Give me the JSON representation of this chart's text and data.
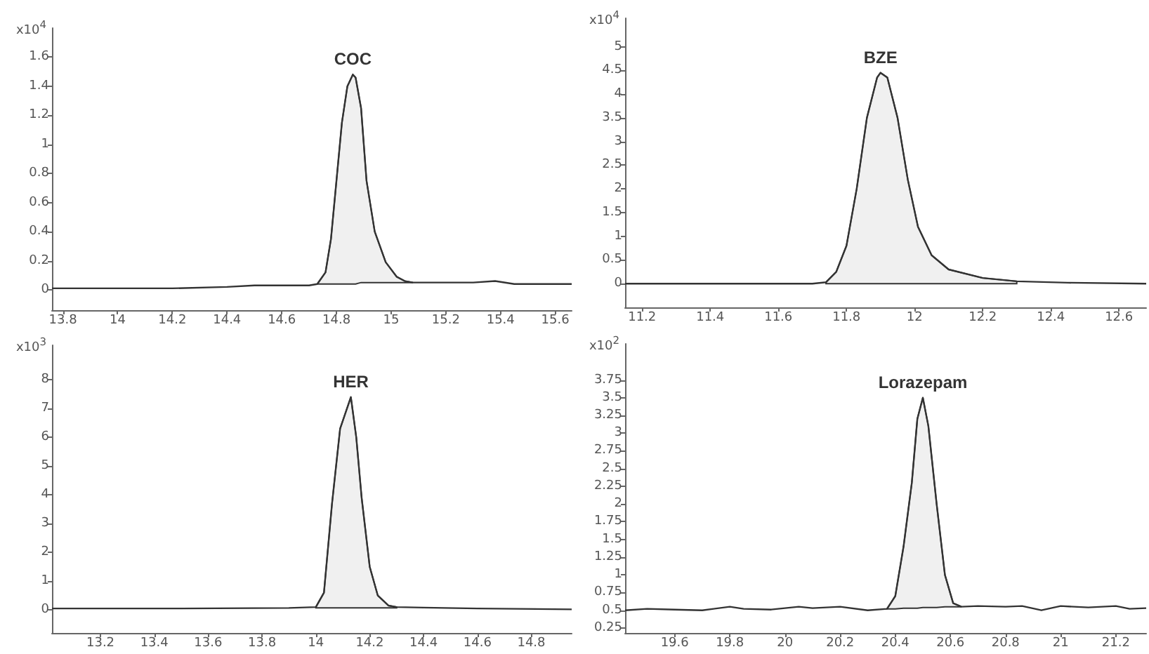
{
  "chart_data": [
    {
      "type": "line",
      "ylabel": "x10$^{4}$",
      "xlim": [
        13.76,
        15.66
      ],
      "ylim": [
        -0.14,
        1.8
      ],
      "xticks": [
        13.8,
        14,
        14.2,
        14.4,
        14.6,
        14.8,
        15,
        15.2,
        15.4,
        15.6
      ],
      "yticks": [
        0,
        0.2,
        0.4,
        0.6,
        0.8,
        1,
        1.2,
        1.4,
        1.6
      ],
      "grid": false,
      "marker": "none",
      "annotations": [
        {
          "text": "COC",
          "x": 14.86,
          "y": 1.48
        }
      ],
      "series": [
        {
          "color": "#333333",
          "x": [
            13.76,
            13.9,
            14.0,
            14.2,
            14.4,
            14.5,
            14.6,
            14.7,
            14.73,
            14.76,
            14.78,
            14.8,
            14.82,
            14.84,
            14.86,
            14.87,
            14.89,
            14.91,
            14.94,
            14.98,
            15.02,
            15.05,
            15.08,
            15.2,
            15.3,
            15.38,
            15.45,
            15.55,
            15.66
          ],
          "values": [
            0.01,
            0.01,
            0.01,
            0.01,
            0.02,
            0.03,
            0.03,
            0.03,
            0.04,
            0.12,
            0.35,
            0.75,
            1.15,
            1.4,
            1.48,
            1.46,
            1.25,
            0.75,
            0.4,
            0.19,
            0.09,
            0.06,
            0.05,
            0.05,
            0.05,
            0.06,
            0.04,
            0.04,
            0.04
          ],
          "lower": [
            null,
            null,
            null,
            null,
            null,
            null,
            null,
            null,
            0.04,
            0.04,
            0.04,
            0.04,
            0.04,
            0.04,
            0.04,
            0.04,
            0.05,
            0.05,
            0.05,
            0.05,
            0.05,
            0.05,
            0.05,
            null,
            null,
            null,
            null,
            null,
            null
          ],
          "upper": [
            null,
            null,
            null,
            null,
            null,
            null,
            null,
            null,
            0.04,
            0.12,
            0.35,
            0.75,
            1.15,
            1.4,
            1.48,
            1.46,
            1.25,
            0.75,
            0.4,
            0.19,
            0.09,
            0.06,
            0.05,
            null,
            null,
            null,
            null,
            null,
            null
          ]
        }
      ]
    },
    {
      "type": "line",
      "ylabel": "x10$^{4}$",
      "xlim": [
        11.15,
        12.68
      ],
      "ylim": [
        -0.5,
        5.6
      ],
      "xticks": [
        11.2,
        11.4,
        11.6,
        11.8,
        12,
        12.2,
        12.4,
        12.6
      ],
      "yticks": [
        0,
        0.5,
        1,
        1.5,
        2,
        2.5,
        3,
        3.5,
        4,
        4.5,
        5
      ],
      "grid": false,
      "marker": "none",
      "annotations": [
        {
          "text": "BZE",
          "x": 11.9,
          "y": 4.45
        }
      ],
      "series": [
        {
          "color": "#333333",
          "x": [
            11.15,
            11.7,
            11.74,
            11.77,
            11.8,
            11.83,
            11.86,
            11.89,
            11.9,
            11.92,
            11.95,
            11.98,
            12.01,
            12.05,
            12.1,
            12.2,
            12.3,
            12.45,
            12.68
          ],
          "values": [
            0,
            0,
            0.03,
            0.25,
            0.8,
            2.0,
            3.5,
            4.35,
            4.45,
            4.35,
            3.5,
            2.2,
            1.2,
            0.6,
            0.3,
            0.12,
            0.05,
            0.02,
            0
          ],
          "lower": [
            null,
            null,
            0,
            0,
            0,
            0,
            0,
            0,
            0,
            0,
            0,
            0,
            0,
            0,
            0,
            0,
            0,
            null,
            null
          ],
          "upper": [
            null,
            null,
            0.03,
            0.25,
            0.8,
            2.0,
            3.5,
            4.35,
            4.45,
            4.35,
            3.5,
            2.2,
            1.2,
            0.6,
            0.3,
            0.12,
            0.05,
            null,
            null
          ]
        }
      ]
    },
    {
      "type": "line",
      "ylabel": "x10$^{3}$",
      "xlim": [
        13.02,
        14.95
      ],
      "ylim": [
        -0.8,
        9.2
      ],
      "xticks": [
        13.2,
        13.4,
        13.6,
        13.8,
        14,
        14.2,
        14.4,
        14.6,
        14.8
      ],
      "yticks": [
        0,
        1,
        2,
        3,
        4,
        5,
        6,
        7,
        8
      ],
      "grid": false,
      "marker": "none",
      "annotations": [
        {
          "text": "HER",
          "x": 14.13,
          "y": 7.4
        }
      ],
      "series": [
        {
          "color": "#333333",
          "x": [
            13.02,
            13.5,
            13.9,
            14.0,
            14.03,
            14.06,
            14.09,
            14.13,
            14.15,
            14.17,
            14.2,
            14.23,
            14.27,
            14.3,
            14.4,
            14.6,
            14.95
          ],
          "values": [
            0.05,
            0.05,
            0.07,
            0.1,
            0.6,
            3.7,
            6.3,
            7.4,
            6.0,
            3.9,
            1.5,
            0.5,
            0.15,
            0.1,
            0.08,
            0.05,
            0.02
          ],
          "lower": [
            null,
            null,
            null,
            0.07,
            0.07,
            0.07,
            0.07,
            0.07,
            0.07,
            0.07,
            0.07,
            0.07,
            0.07,
            0.07,
            null,
            null,
            null
          ],
          "upper": [
            null,
            null,
            null,
            0.1,
            0.6,
            3.7,
            6.3,
            7.4,
            6.0,
            3.9,
            1.5,
            0.5,
            0.15,
            0.1,
            null,
            null,
            null
          ]
        }
      ]
    },
    {
      "type": "line",
      "ylabel": "x10$^{2}$",
      "xlim": [
        19.42,
        21.31
      ],
      "ylim": [
        0.18,
        4.26
      ],
      "xticks": [
        19.6,
        19.8,
        20,
        20.2,
        20.4,
        20.6,
        20.8,
        21,
        21.2
      ],
      "yticks": [
        0.25,
        0.5,
        0.75,
        1,
        1.25,
        1.5,
        1.75,
        2,
        2.25,
        2.5,
        2.75,
        3,
        3.25,
        3.5,
        3.75
      ],
      "grid": false,
      "marker": "none",
      "annotations": [
        {
          "text": "Lorazepam",
          "x": 20.5,
          "y": 3.5
        }
      ],
      "series": [
        {
          "color": "#333333",
          "x": [
            19.42,
            19.5,
            19.6,
            19.7,
            19.8,
            19.85,
            19.95,
            20.05,
            20.1,
            20.2,
            20.3,
            20.37,
            20.4,
            20.43,
            20.46,
            20.48,
            20.5,
            20.52,
            20.55,
            20.58,
            20.61,
            20.64,
            20.7,
            20.8,
            20.86,
            20.93,
            21.0,
            21.1,
            21.2,
            21.25,
            21.31
          ],
          "values": [
            0.5,
            0.52,
            0.51,
            0.5,
            0.55,
            0.52,
            0.51,
            0.55,
            0.53,
            0.55,
            0.5,
            0.52,
            0.7,
            1.4,
            2.3,
            3.2,
            3.5,
            3.1,
            2.0,
            1.0,
            0.6,
            0.55,
            0.56,
            0.55,
            0.56,
            0.5,
            0.56,
            0.54,
            0.56,
            0.52,
            0.53
          ],
          "lower": [
            null,
            null,
            null,
            null,
            null,
            null,
            null,
            null,
            null,
            null,
            null,
            0.52,
            0.52,
            0.53,
            0.53,
            0.53,
            0.54,
            0.54,
            0.54,
            0.55,
            0.55,
            0.55,
            null,
            null,
            null,
            null,
            null,
            null,
            null,
            null,
            null
          ],
          "upper": [
            null,
            null,
            null,
            null,
            null,
            null,
            null,
            null,
            null,
            null,
            null,
            0.52,
            0.7,
            1.4,
            2.3,
            3.2,
            3.5,
            3.1,
            2.0,
            1.0,
            0.6,
            0.55,
            null,
            null,
            null,
            null,
            null,
            null,
            null,
            null,
            null
          ]
        }
      ]
    }
  ]
}
